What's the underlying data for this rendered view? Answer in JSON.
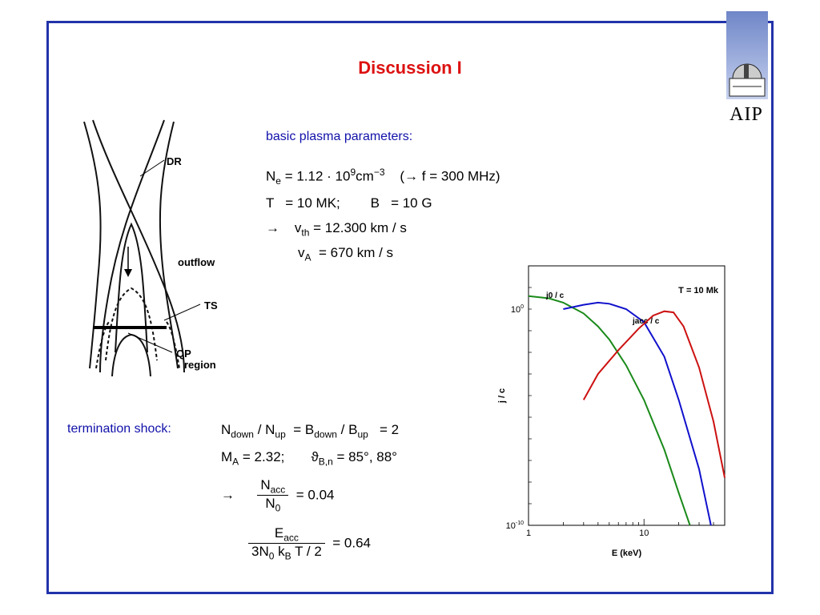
{
  "title": "Discussion I",
  "logo": {
    "text": "AIP"
  },
  "plasma": {
    "heading": "basic plasma parameters:",
    "ne_line": "N",
    "ne_sub": "e",
    "ne_val": "= 1.12 · 10",
    "ne_exp": "9",
    "ne_unit": "cm",
    "ne_unit_exp": "−3",
    "freq": "(→ f = 300 MHz)",
    "t_line": "T   = 10 MK;",
    "b_line": "B   = 10 G",
    "arrow": "→",
    "vth_label": "v",
    "vth_sub": "th",
    "vth_val": "= 12.300 km / s",
    "va_label": "v",
    "va_sub": "A",
    "va_val": "= 670 km / s"
  },
  "diagram": {
    "dr": "DR",
    "outflow": "outflow",
    "ts": "TS",
    "qp1": "QP",
    "qp2": "region"
  },
  "shock": {
    "heading": "termination shock:",
    "line1": "N_down / N_up = B_down / B_up = 2",
    "n": "N",
    "down": "down",
    "slash": " / N",
    "up": "up",
    "eqb": " = B",
    "bdown": "down",
    "slash2": " / B",
    "bup": "up",
    "val1": " = 2",
    "ma": "M",
    "ma_sub": "A",
    "ma_val": " = 2.32;",
    "theta": "ϑ",
    "theta_sub": "B,n",
    "theta_val": " = 85°, 88°",
    "arrow": "→",
    "frac1_num": "N",
    "frac1_num_sub": "acc",
    "frac1_den": "N",
    "frac1_den_sub": "0",
    "frac1_val": "= 0.04",
    "frac2_num": "E",
    "frac2_num_sub": "acc",
    "frac2_den": "3N",
    "frac2_den_sub0": "0",
    "frac2_den_k": " k",
    "frac2_den_sub_b": "B",
    "frac2_den_rest": " T / 2",
    "frac2_val": "= 0.64"
  },
  "chart_data": {
    "type": "line",
    "annotation": "T = 10 Mk",
    "xlabel": "E (keV)",
    "ylabel": "j / c",
    "xscale": "log",
    "yscale": "log",
    "xlim": [
      1,
      50
    ],
    "ylim_exp": [
      -10,
      2
    ],
    "x_ticks": [
      "1",
      "10"
    ],
    "y_ticks": [
      "10^0",
      "10^-10"
    ],
    "series": [
      {
        "name": "j0 / c",
        "color": "#1a8a1a",
        "x": [
          1,
          1.5,
          2,
          3,
          4,
          5,
          7,
          10,
          15,
          20,
          25
        ],
        "y_exp": [
          0.6,
          0.5,
          0.3,
          -0.2,
          -0.8,
          -1.4,
          -2.6,
          -4.2,
          -6.5,
          -8.5,
          -10
        ]
      },
      {
        "name": "jacc / c",
        "color": "#1111cc",
        "x": [
          2,
          3,
          4,
          5,
          7,
          10,
          15,
          20,
          30,
          38
        ],
        "y_exp": [
          0,
          0.2,
          0.3,
          0.25,
          0,
          -0.6,
          -2.2,
          -4.2,
          -7.4,
          -10
        ]
      },
      {
        "name": "",
        "color": "#cc1111",
        "x": [
          3,
          4,
          6,
          9,
          12,
          15,
          18,
          22,
          30,
          40,
          50
        ],
        "y_exp": [
          -4.2,
          -3,
          -1.9,
          -0.9,
          -0.3,
          -0.1,
          -0.15,
          -0.8,
          -2.7,
          -5.2,
          -7.8
        ]
      }
    ]
  }
}
